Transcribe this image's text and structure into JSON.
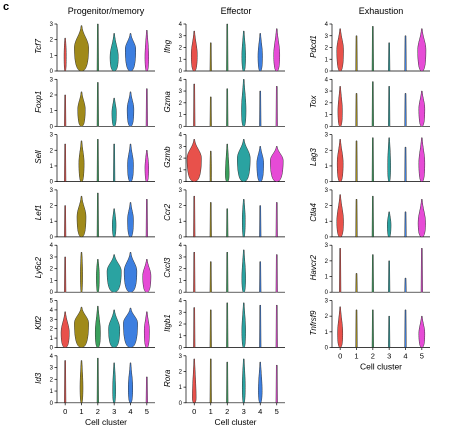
{
  "panel_letter": "c",
  "colors": [
    "#e8514b",
    "#a08a1a",
    "#3aa05c",
    "#2aa3a1",
    "#3d7fe0",
    "#e64bd6"
  ],
  "chart_data": [
    {
      "type": "violin",
      "title": "Progenitor/memory",
      "xlabel": "Cell cluster",
      "categories": [
        "0",
        "1",
        "2",
        "3",
        "4",
        "5"
      ],
      "genes": [
        {
          "name": "Tcf7",
          "ylim": [
            0,
            3
          ],
          "yticks": [
            "0",
            "1",
            "2",
            "3"
          ],
          "violins": [
            {
              "median": 0.9,
              "max": 2.1,
              "width": 0.15
            },
            {
              "median": 1.5,
              "max": 2.9,
              "width": 0.95
            },
            {
              "median": 0.0,
              "max": 3.0,
              "width": 0.04
            },
            {
              "median": 0.9,
              "max": 2.4,
              "width": 0.55
            },
            {
              "median": 1.4,
              "max": 2.4,
              "width": 0.7
            },
            {
              "median": 0.9,
              "max": 2.6,
              "width": 0.25
            }
          ]
        },
        {
          "name": "Foxp1",
          "ylim": [
            0,
            3
          ],
          "yticks": [
            "0",
            "1",
            "2",
            "3"
          ],
          "violins": [
            {
              "median": 0.0,
              "max": 2.0,
              "width": 0.04
            },
            {
              "median": 1.1,
              "max": 2.2,
              "width": 0.5
            },
            {
              "median": 0.0,
              "max": 2.8,
              "width": 0.04
            },
            {
              "median": 0.9,
              "max": 1.8,
              "width": 0.3
            },
            {
              "median": 1.1,
              "max": 2.2,
              "width": 0.45
            },
            {
              "median": 0.0,
              "max": 2.4,
              "width": 0.04
            }
          ]
        },
        {
          "name": "Sell",
          "ylim": [
            0,
            3
          ],
          "yticks": [
            "0",
            "1",
            "2",
            "3"
          ],
          "violins": [
            {
              "median": 0.0,
              "max": 2.4,
              "width": 0.04
            },
            {
              "median": 1.2,
              "max": 2.6,
              "width": 0.35
            },
            {
              "median": 0.0,
              "max": 2.7,
              "width": 0.04
            },
            {
              "median": 0.0,
              "max": 2.4,
              "width": 0.04
            },
            {
              "median": 1.1,
              "max": 2.4,
              "width": 0.4
            },
            {
              "median": 0.9,
              "max": 2.0,
              "width": 0.25
            }
          ]
        },
        {
          "name": "Lef1",
          "ylim": [
            0,
            3
          ],
          "yticks": [
            "0",
            "1",
            "2",
            "3"
          ],
          "violins": [
            {
              "median": 0.0,
              "max": 2.0,
              "width": 0.04
            },
            {
              "median": 1.3,
              "max": 2.6,
              "width": 0.6
            },
            {
              "median": 0.0,
              "max": 2.8,
              "width": 0.04
            },
            {
              "median": 0.8,
              "max": 1.8,
              "width": 0.25
            },
            {
              "median": 1.1,
              "max": 2.2,
              "width": 0.4
            },
            {
              "median": 0.0,
              "max": 2.4,
              "width": 0.04
            }
          ]
        },
        {
          "name": "Ly6c2",
          "ylim": [
            0,
            4
          ],
          "yticks": [
            "0",
            "1",
            "2",
            "3",
            "4"
          ],
          "violins": [
            {
              "median": 0.0,
              "max": 3.0,
              "width": 0.04
            },
            {
              "median": 1.5,
              "max": 3.4,
              "width": 0.15
            },
            {
              "median": 1.4,
              "max": 2.8,
              "width": 0.2
            },
            {
              "median": 1.8,
              "max": 3.2,
              "width": 0.95
            },
            {
              "median": 1.8,
              "max": 3.4,
              "width": 0.85
            },
            {
              "median": 1.4,
              "max": 2.8,
              "width": 0.55
            }
          ]
        },
        {
          "name": "Klf2",
          "ylim": [
            0,
            5
          ],
          "yticks": [
            "0",
            "1",
            "2",
            "3",
            "4",
            "5"
          ],
          "violins": [
            {
              "median": 1.6,
              "max": 3.8,
              "width": 0.55
            },
            {
              "median": 2.6,
              "max": 4.3,
              "width": 0.95
            },
            {
              "median": 1.6,
              "max": 4.4,
              "width": 0.35
            },
            {
              "median": 2.0,
              "max": 4.0,
              "width": 0.75
            },
            {
              "median": 2.6,
              "max": 4.2,
              "width": 0.95
            },
            {
              "median": 1.8,
              "max": 3.8,
              "width": 0.35
            }
          ]
        },
        {
          "name": "Id3",
          "ylim": [
            0,
            4
          ],
          "yticks": [
            "0",
            "1",
            "2",
            "3",
            "4"
          ],
          "violins": [
            {
              "median": 0.0,
              "max": 3.6,
              "width": 0.04
            },
            {
              "median": 1.3,
              "max": 3.6,
              "width": 0.2
            },
            {
              "median": 0.0,
              "max": 3.8,
              "width": 0.04
            },
            {
              "median": 1.0,
              "max": 3.4,
              "width": 0.2
            },
            {
              "median": 1.3,
              "max": 3.4,
              "width": 0.3
            },
            {
              "median": 0.0,
              "max": 2.2,
              "width": 0.04
            }
          ]
        }
      ]
    },
    {
      "type": "violin",
      "title": "Effector",
      "xlabel": "Cell cluster",
      "categories": [
        "0",
        "1",
        "2",
        "3",
        "4",
        "5"
      ],
      "genes": [
        {
          "name": "Ifng",
          "ylim": [
            0,
            4
          ],
          "yticks": [
            "0",
            "1",
            "2",
            "3",
            "4"
          ],
          "violins": [
            {
              "median": 1.4,
              "max": 3.4,
              "width": 0.4
            },
            {
              "median": 0.0,
              "max": 2.4,
              "width": 0.04
            },
            {
              "median": 0.0,
              "max": 4.0,
              "width": 0.04
            },
            {
              "median": 1.3,
              "max": 3.4,
              "width": 0.25
            },
            {
              "median": 1.3,
              "max": 3.2,
              "width": 0.3
            },
            {
              "median": 1.4,
              "max": 3.6,
              "width": 0.4
            }
          ]
        },
        {
          "name": "Gzma",
          "ylim": [
            0,
            4
          ],
          "yticks": [
            "0",
            "1",
            "2",
            "3",
            "4"
          ],
          "violins": [
            {
              "median": 0.0,
              "max": 3.6,
              "width": 0.04
            },
            {
              "median": 0.0,
              "max": 2.5,
              "width": 0.04
            },
            {
              "median": 0.0,
              "max": 3.2,
              "width": 0.04
            },
            {
              "median": 1.4,
              "max": 4.0,
              "width": 0.3
            },
            {
              "median": 0.0,
              "max": 3.0,
              "width": 0.04
            },
            {
              "median": 0.0,
              "max": 3.4,
              "width": 0.04
            }
          ]
        },
        {
          "name": "Gzmb",
          "ylim": [
            0,
            4
          ],
          "yticks": [
            "0",
            "1",
            "2",
            "3",
            "4"
          ],
          "violins": [
            {
              "median": 2.0,
              "max": 3.6,
              "width": 0.95
            },
            {
              "median": 0.0,
              "max": 2.6,
              "width": 0.1
            },
            {
              "median": 0.6,
              "max": 3.2,
              "width": 0.25
            },
            {
              "median": 2.0,
              "max": 3.6,
              "width": 0.85
            },
            {
              "median": 1.6,
              "max": 3.0,
              "width": 0.45
            },
            {
              "median": 1.8,
              "max": 3.0,
              "width": 0.85
            }
          ]
        },
        {
          "name": "Ccr2",
          "ylim": [
            0,
            3
          ],
          "yticks": [
            "0",
            "1",
            "2",
            "3"
          ],
          "violins": [
            {
              "median": 0.0,
              "max": 2.6,
              "width": 0.04
            },
            {
              "median": 0.0,
              "max": 2.2,
              "width": 0.04
            },
            {
              "median": 0.0,
              "max": 1.8,
              "width": 0.04
            },
            {
              "median": 1.1,
              "max": 2.4,
              "width": 0.2
            },
            {
              "median": 0.0,
              "max": 2.0,
              "width": 0.04
            },
            {
              "median": 0.0,
              "max": 2.2,
              "width": 0.04
            }
          ]
        },
        {
          "name": "Cxcl3",
          "ylim": [
            0,
            4
          ],
          "yticks": [
            "0",
            "1",
            "2",
            "3",
            "4"
          ],
          "violins": [
            {
              "median": 0.0,
              "max": 3.4,
              "width": 0.04
            },
            {
              "median": 0.0,
              "max": 2.6,
              "width": 0.04
            },
            {
              "median": 0.0,
              "max": 3.4,
              "width": 0.04
            },
            {
              "median": 1.2,
              "max": 3.6,
              "width": 0.25
            },
            {
              "median": 0.0,
              "max": 2.6,
              "width": 0.04
            },
            {
              "median": 0.0,
              "max": 3.2,
              "width": 0.04
            }
          ]
        },
        {
          "name": "Itgb1",
          "ylim": [
            0,
            4
          ],
          "yticks": [
            "0",
            "1",
            "2",
            "3",
            "4"
          ],
          "violins": [
            {
              "median": 0.0,
              "max": 3.4,
              "width": 0.04
            },
            {
              "median": 0.0,
              "max": 3.2,
              "width": 0.04
            },
            {
              "median": 0.0,
              "max": 3.8,
              "width": 0.04
            },
            {
              "median": 1.4,
              "max": 3.8,
              "width": 0.25
            },
            {
              "median": 0.0,
              "max": 3.6,
              "width": 0.04
            },
            {
              "median": 0.0,
              "max": 3.6,
              "width": 0.04
            }
          ]
        },
        {
          "name": "Rora",
          "ylim": [
            0,
            3
          ],
          "yticks": [
            "0",
            "1",
            "2",
            "3"
          ],
          "violins": [
            {
              "median": 0.3,
              "max": 2.8,
              "width": 0.25
            },
            {
              "median": 0.0,
              "max": 2.8,
              "width": 0.04
            },
            {
              "median": 0.0,
              "max": 2.6,
              "width": 0.04
            },
            {
              "median": 1.0,
              "max": 2.8,
              "width": 0.2
            },
            {
              "median": 0.8,
              "max": 2.6,
              "width": 0.25
            },
            {
              "median": 0.0,
              "max": 2.4,
              "width": 0.04
            }
          ]
        }
      ]
    },
    {
      "type": "violin",
      "title": "Exhaustion",
      "xlabel": "Cell cluster",
      "categories": [
        "0",
        "1",
        "2",
        "3",
        "4",
        "5"
      ],
      "genes": [
        {
          "name": "Pdcd1",
          "ylim": [
            0,
            4
          ],
          "yticks": [
            "0",
            "1",
            "2",
            "3",
            "4"
          ],
          "violins": [
            {
              "median": 1.8,
              "max": 3.6,
              "width": 0.45
            },
            {
              "median": 0.0,
              "max": 3.0,
              "width": 0.04
            },
            {
              "median": 0.0,
              "max": 3.8,
              "width": 0.04
            },
            {
              "median": 0.0,
              "max": 2.4,
              "width": 0.04
            },
            {
              "median": 0.0,
              "max": 3.0,
              "width": 0.04
            },
            {
              "median": 1.8,
              "max": 3.6,
              "width": 0.55
            }
          ]
        },
        {
          "name": "Tox",
          "ylim": [
            0,
            4
          ],
          "yticks": [
            "0",
            "1",
            "2",
            "3",
            "4"
          ],
          "violins": [
            {
              "median": 1.3,
              "max": 3.4,
              "width": 0.3
            },
            {
              "median": 0.0,
              "max": 2.8,
              "width": 0.04
            },
            {
              "median": 0.0,
              "max": 3.8,
              "width": 0.04
            },
            {
              "median": 0.0,
              "max": 3.4,
              "width": 0.04
            },
            {
              "median": 0.0,
              "max": 2.8,
              "width": 0.04
            },
            {
              "median": 1.5,
              "max": 3.0,
              "width": 0.4
            }
          ]
        },
        {
          "name": "Lag3",
          "ylim": [
            0,
            3
          ],
          "yticks": [
            "0",
            "1",
            "2",
            "3"
          ],
          "violins": [
            {
              "median": 1.2,
              "max": 2.7,
              "width": 0.4
            },
            {
              "median": 0.0,
              "max": 2.6,
              "width": 0.04
            },
            {
              "median": 0.0,
              "max": 2.8,
              "width": 0.04
            },
            {
              "median": 1.0,
              "max": 2.8,
              "width": 0.2
            },
            {
              "median": 0.0,
              "max": 2.2,
              "width": 0.04
            },
            {
              "median": 1.2,
              "max": 2.8,
              "width": 0.4
            }
          ]
        },
        {
          "name": "Ctla4",
          "ylim": [
            0,
            3
          ],
          "yticks": [
            "0",
            "1",
            "2",
            "3"
          ],
          "violins": [
            {
              "median": 1.0,
              "max": 2.7,
              "width": 0.45
            },
            {
              "median": 0.0,
              "max": 2.4,
              "width": 0.04
            },
            {
              "median": 0.0,
              "max": 2.6,
              "width": 0.04
            },
            {
              "median": 0.8,
              "max": 1.6,
              "width": 0.25
            },
            {
              "median": 0.0,
              "max": 1.6,
              "width": 0.04
            },
            {
              "median": 0.9,
              "max": 2.4,
              "width": 0.5
            }
          ]
        },
        {
          "name": "Havcr2",
          "ylim": [
            0,
            3
          ],
          "yticks": [
            "0",
            "1",
            "2",
            "3"
          ],
          "violins": [
            {
              "median": 0.0,
              "max": 2.8,
              "width": 0.04
            },
            {
              "median": 0.0,
              "max": 1.2,
              "width": 0.04
            },
            {
              "median": 0.0,
              "max": 2.4,
              "width": 0.04
            },
            {
              "median": 0.0,
              "max": 2.0,
              "width": 0.04
            },
            {
              "median": 0.0,
              "max": 0.9,
              "width": 0.04
            },
            {
              "median": 0.0,
              "max": 2.8,
              "width": 0.04
            }
          ]
        },
        {
          "name": "Tnfrsf9",
          "ylim": [
            0,
            3
          ],
          "yticks": [
            "0",
            "1",
            "2",
            "3"
          ],
          "violins": [
            {
              "median": 0.9,
              "max": 2.6,
              "width": 0.35
            },
            {
              "median": 0.0,
              "max": 2.4,
              "width": 0.04
            },
            {
              "median": 0.0,
              "max": 2.4,
              "width": 0.04
            },
            {
              "median": 0.0,
              "max": 2.0,
              "width": 0.04
            },
            {
              "median": 0.0,
              "max": 2.4,
              "width": 0.04
            },
            {
              "median": 0.9,
              "max": 2.0,
              "width": 0.4
            }
          ]
        }
      ]
    }
  ]
}
